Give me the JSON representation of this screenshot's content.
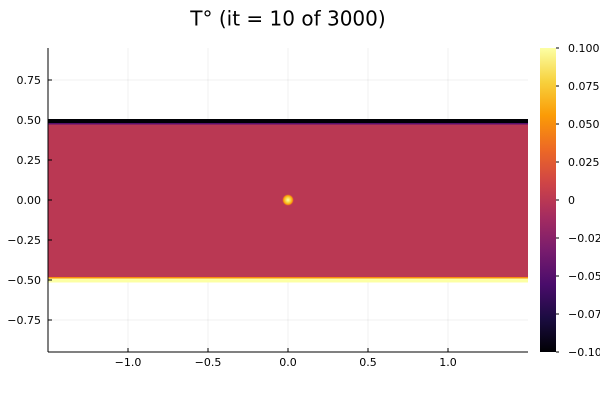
{
  "chart_data": {
    "type": "heatmap",
    "title": "T° (it = 10 of 3000)",
    "xlabel": "",
    "ylabel": "",
    "xlim": [
      -1.5,
      1.5
    ],
    "ylim": [
      -0.95,
      0.95
    ],
    "x_ticks": [
      -1.0,
      -0.5,
      0.0,
      0.5,
      1.0
    ],
    "x_tick_labels": [
      "−1.0",
      "−0.5",
      "0.0",
      "0.5",
      "1.0"
    ],
    "y_ticks": [
      0.75,
      0.5,
      0.25,
      0.0,
      -0.25,
      -0.5,
      -0.75
    ],
    "y_tick_labels": [
      "0.75",
      "0.50",
      "0.25",
      "0.00",
      "−0.25",
      "−0.50",
      "−0.75"
    ],
    "grid": true,
    "field": {
      "domain_y": [
        -0.5,
        0.5
      ],
      "interior_value": 0.0,
      "top_boundary_value": -0.1,
      "bottom_boundary_value": 0.1,
      "hot_spot": {
        "x": 0.0,
        "y": 0.0,
        "value": 0.1
      }
    },
    "colorbar": {
      "colormap": "inferno",
      "range": [
        -0.1,
        0.1
      ],
      "ticks": [
        0.1,
        0.075,
        0.05,
        0.025,
        0.0,
        -0.025,
        -0.05,
        -0.075,
        -0.1
      ],
      "tick_labels": [
        "0.100",
        "0.075",
        "0.050",
        "0.025",
        "0",
        "−0.025",
        "−0.050",
        "−0.075",
        "−0.100"
      ],
      "stops": [
        "#000004",
        "#1b0c41",
        "#4a0c6b",
        "#781c6d",
        "#a52c60",
        "#cf4446",
        "#ed6925",
        "#fb9b06",
        "#f7d13d",
        "#fcffa4"
      ]
    }
  }
}
